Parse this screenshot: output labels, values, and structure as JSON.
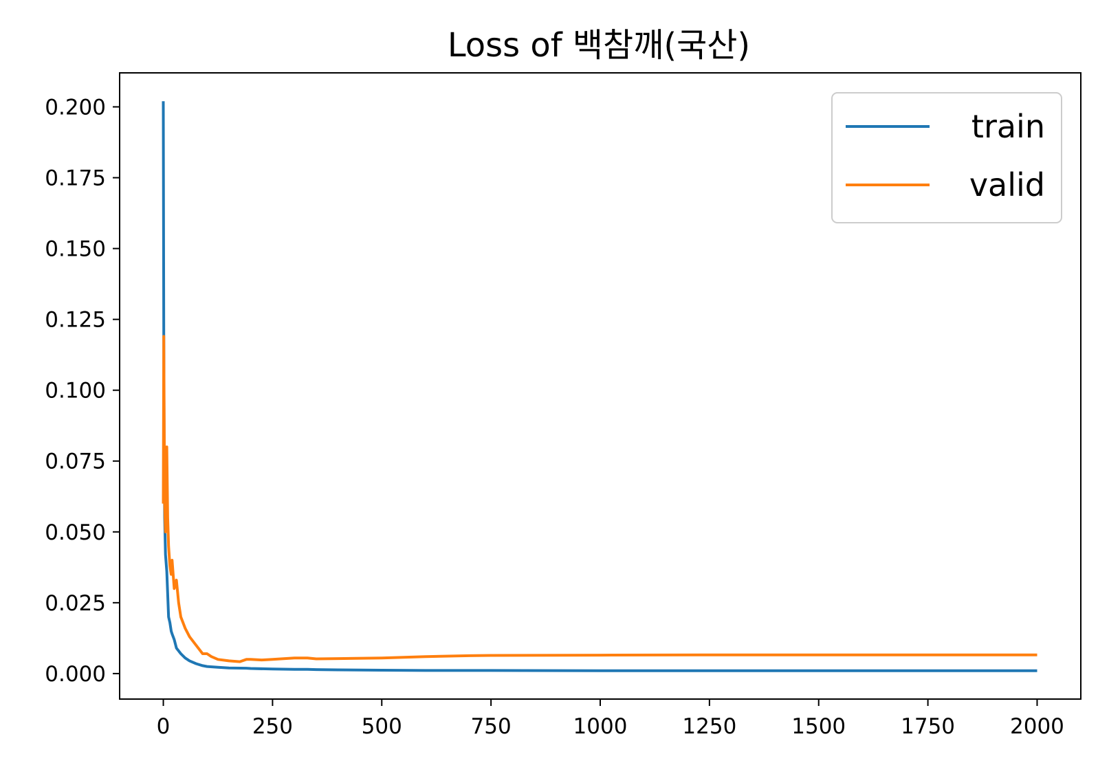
{
  "chart_data": {
    "type": "line",
    "title": "Loss of 백참깨(국산)",
    "xlabel": "",
    "ylabel": "",
    "xlim": [
      -100,
      2100
    ],
    "ylim": [
      -0.009,
      0.212
    ],
    "x_ticks": [
      0,
      250,
      500,
      750,
      1000,
      1250,
      1500,
      1750,
      2000
    ],
    "x_tick_labels": [
      "0",
      "250",
      "500",
      "750",
      "1000",
      "1250",
      "1500",
      "1750",
      "2000"
    ],
    "y_ticks": [
      0.0,
      0.025,
      0.05,
      0.075,
      0.1,
      0.125,
      0.15,
      0.175,
      0.2
    ],
    "y_tick_labels": [
      "0.000",
      "0.025",
      "0.050",
      "0.075",
      "0.100",
      "0.125",
      "0.150",
      "0.175",
      "0.200"
    ],
    "grid": false,
    "legend_position": "top-right",
    "series": [
      {
        "name": "train",
        "color": "#1f77b4",
        "x": [
          0,
          1,
          2,
          3,
          5,
          8,
          10,
          12,
          15,
          18,
          20,
          25,
          30,
          40,
          50,
          60,
          75,
          90,
          100,
          125,
          150,
          190,
          200,
          250,
          300,
          330,
          350,
          400,
          500,
          600,
          750,
          1000,
          1250,
          1500,
          1750,
          2000
        ],
        "y": [
          0.202,
          0.12,
          0.075,
          0.055,
          0.042,
          0.036,
          0.028,
          0.02,
          0.018,
          0.015,
          0.014,
          0.012,
          0.009,
          0.007,
          0.0055,
          0.0045,
          0.0035,
          0.0028,
          0.0025,
          0.0022,
          0.002,
          0.0019,
          0.0018,
          0.0016,
          0.0015,
          0.0015,
          0.0014,
          0.0013,
          0.0012,
          0.0011,
          0.0011,
          0.001,
          0.001,
          0.001,
          0.001,
          0.001
        ]
      },
      {
        "name": "valid",
        "color": "#ff7f0e",
        "x": [
          0,
          1,
          2,
          3,
          5,
          8,
          10,
          12,
          15,
          18,
          20,
          25,
          30,
          35,
          40,
          50,
          60,
          75,
          90,
          100,
          110,
          125,
          150,
          175,
          190,
          200,
          225,
          250,
          300,
          330,
          350,
          400,
          500,
          600,
          700,
          750,
          1000,
          1250,
          1500,
          1750,
          2000
        ],
        "y": [
          0.06,
          0.119,
          0.09,
          0.06,
          0.05,
          0.08,
          0.055,
          0.045,
          0.038,
          0.035,
          0.04,
          0.03,
          0.033,
          0.025,
          0.02,
          0.016,
          0.013,
          0.01,
          0.007,
          0.007,
          0.006,
          0.005,
          0.0045,
          0.0042,
          0.005,
          0.005,
          0.0048,
          0.005,
          0.0055,
          0.0055,
          0.0052,
          0.0053,
          0.0055,
          0.006,
          0.0063,
          0.0064,
          0.0065,
          0.0066,
          0.0066,
          0.0066,
          0.0066
        ]
      }
    ]
  }
}
